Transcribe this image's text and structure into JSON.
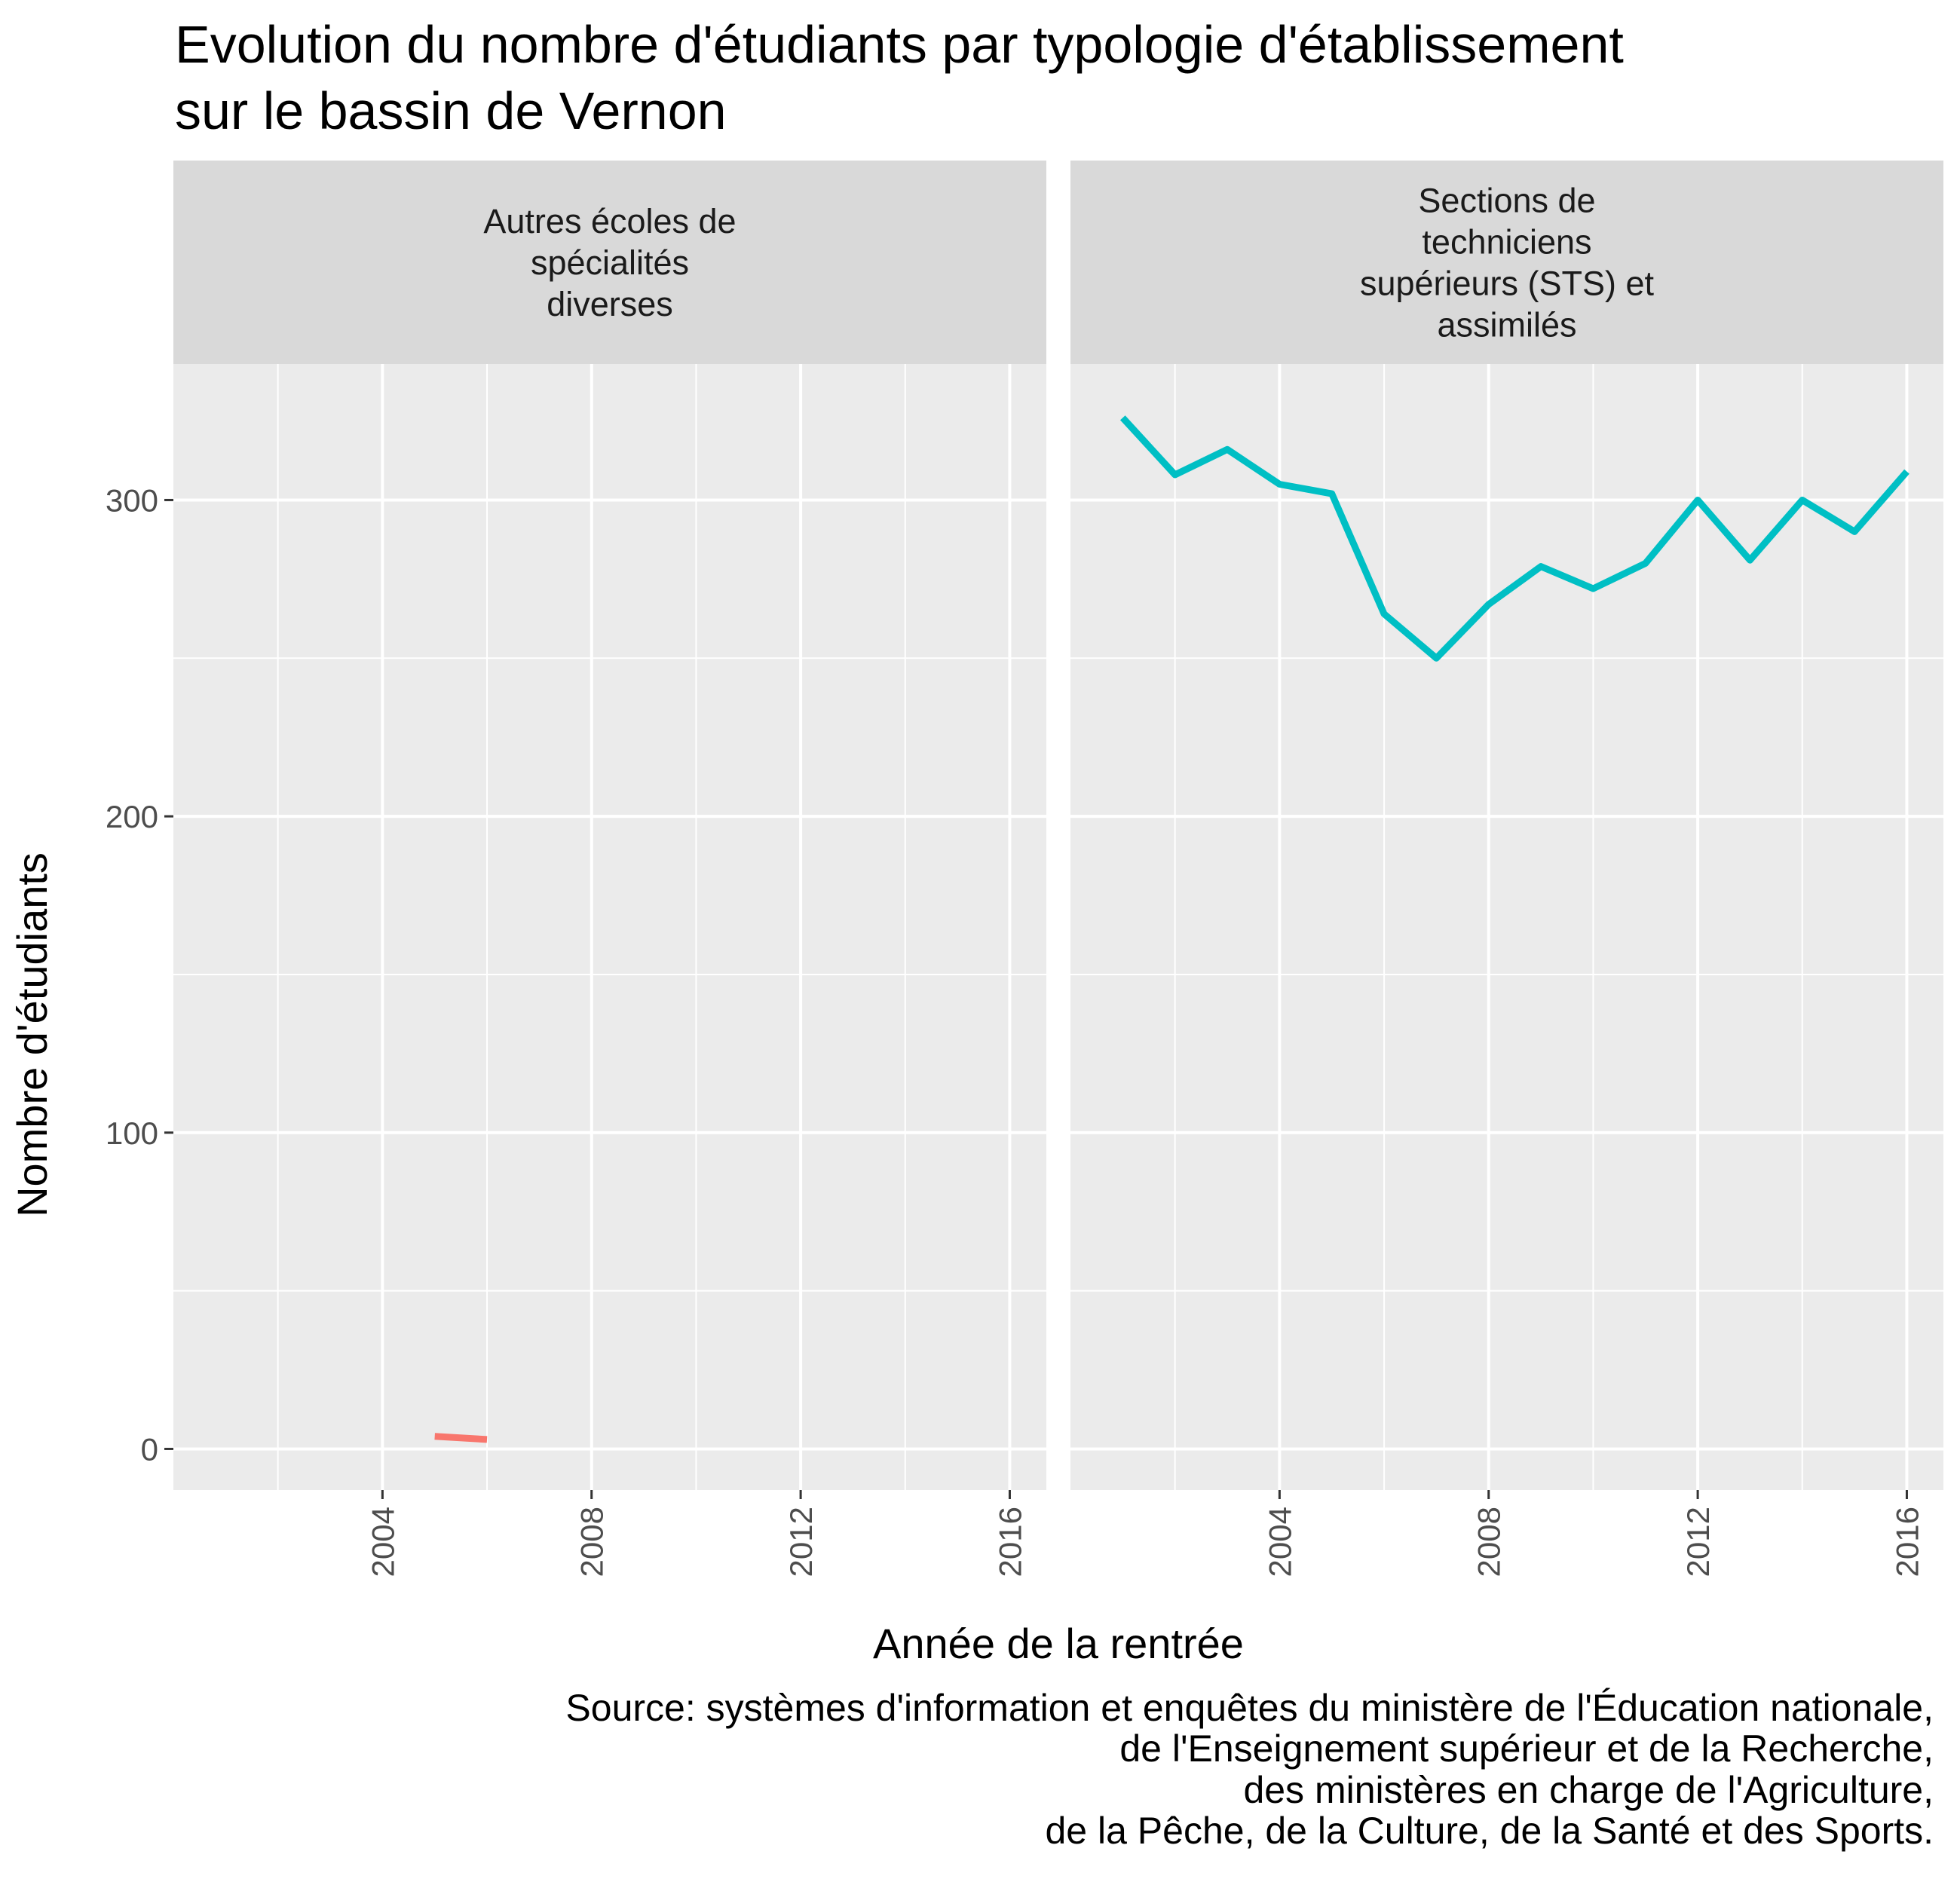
{
  "title_lines": [
    "Evolution du nombre d'étudiants par typologie d'établissement",
    "sur  le bassin de Vernon"
  ],
  "chart_data": {
    "type": "line",
    "xlabel": "Année de la rentrée",
    "ylabel": "Nombre d'étudiants",
    "xlim": [
      2000,
      2016.7
    ],
    "ylim": [
      -13,
      343
    ],
    "x_ticks": [
      2004,
      2008,
      2012,
      2016
    ],
    "y_ticks": [
      0,
      100,
      200,
      300
    ],
    "grid": true,
    "facets": [
      {
        "label_lines": [
          "Autres écoles de",
          "spécialités",
          "diverses"
        ],
        "color": "#F8766D",
        "x": [
          2005,
          2006
        ],
        "values": [
          4,
          3
        ]
      },
      {
        "label_lines": [
          "Sections de",
          "techniciens",
          "supérieurs (STS) et",
          "assimilés"
        ],
        "color": "#00BFC4",
        "x": [
          2001,
          2002,
          2003,
          2004,
          2005,
          2006,
          2007,
          2008,
          2009,
          2010,
          2011,
          2012,
          2013,
          2014,
          2015,
          2016
        ],
        "values": [
          326,
          308,
          316,
          305,
          302,
          264,
          250,
          267,
          279,
          272,
          280,
          300,
          281,
          300,
          290,
          309
        ]
      }
    ]
  },
  "caption_lines": [
    "Source: systèmes d'information et enquêtes du ministère de l'Éducation nationale,",
    "de l'Enseignement supérieur et de la Recherche,",
    "des ministères en charge de l'Agriculture,",
    "de la Pêche, de la Culture, de la Santé et des Sports."
  ]
}
